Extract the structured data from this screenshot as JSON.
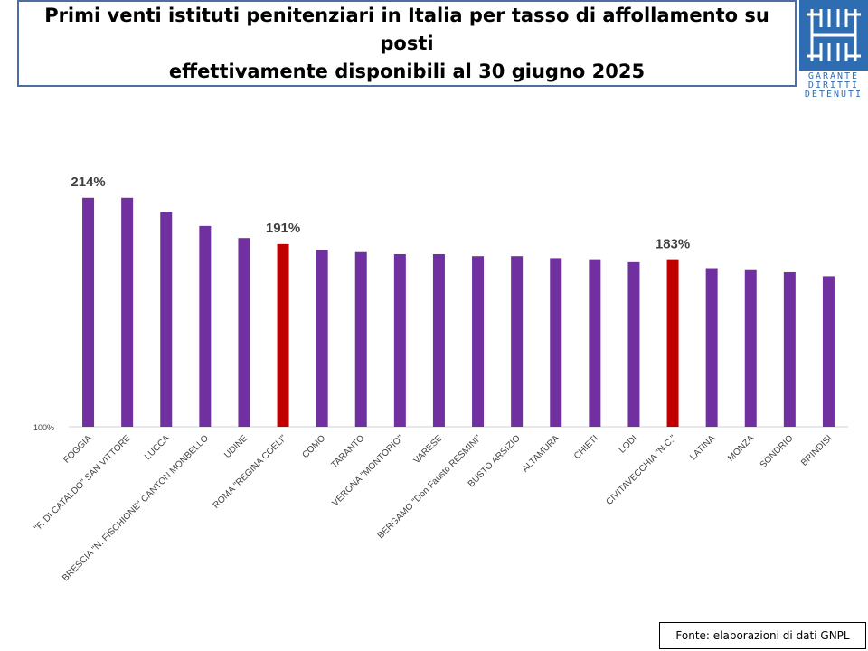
{
  "title": "Primi venti istituti penitenziari in Italia per tasso di affollamento su posti\neffettivamente disponibili al 30 giugno 2025",
  "logo": {
    "line1": "GARANTE",
    "line2": "DIRITTI",
    "line3": "DETENUTI"
  },
  "source": "Fonte: elaborazioni di dati GNPL",
  "colors": {
    "bar": "#7030a0",
    "highlight": "#c00000"
  },
  "chart_data": {
    "type": "bar",
    "title": "Primi venti istituti penitenziari in Italia per tasso di affollamento su posti effettivamente disponibili al 30 giugno 2025",
    "xlabel": "",
    "ylabel": "",
    "axis_label": "100%",
    "ylim": [
      100,
      222
    ],
    "grid": false,
    "legend": "none",
    "categories": [
      "FOGGIA",
      "\"F. DI CATALDO\" SAN VITTORE",
      "LUCCA",
      "BRESCIA \"N. FISCHIONE\" CANTON MONBELLO",
      "UDINE",
      "ROMA \"REGINA COELI\"",
      "COMO",
      "TARANTO",
      "VERONA \"MONTORIO\"",
      "VARESE",
      "BERGAMO \"Don Fausto RESMINI\"",
      "BUSTO ARSIZIO",
      "ALTAMURA",
      "CHIETI",
      "LODI",
      "CIVITAVECCHIA \"N.C.\"",
      "LATINA",
      "MONZA",
      "SONDRIO",
      "BRINDISI"
    ],
    "values": [
      214,
      214,
      207,
      200,
      194,
      191,
      188,
      187,
      186,
      186,
      185,
      185,
      184,
      183,
      182,
      183,
      179,
      178,
      177,
      175
    ],
    "highlighted": [
      5,
      15
    ],
    "data_labels": {
      "0": "214%",
      "5": "191%",
      "15": "183%"
    }
  }
}
